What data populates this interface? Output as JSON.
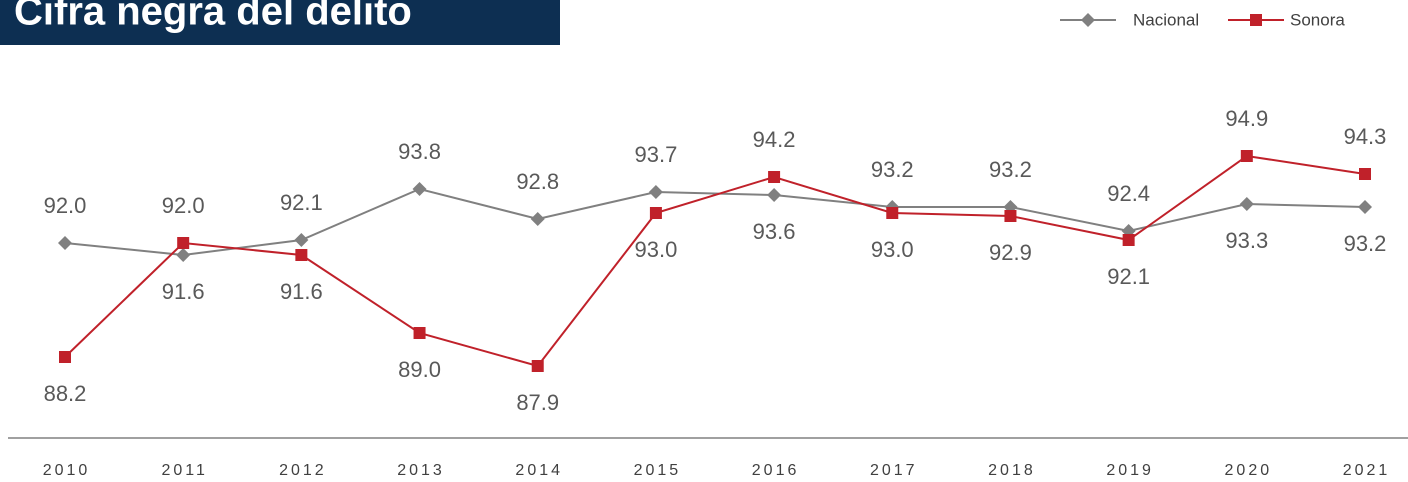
{
  "chart_data": {
    "type": "line",
    "title": "Cifra negra del delito",
    "categories": [
      "2010",
      "2011",
      "2012",
      "2013",
      "2014",
      "2015",
      "2016",
      "2017",
      "2018",
      "2019",
      "2020",
      "2021"
    ],
    "series": [
      {
        "name": "Nacional",
        "color": "#808080",
        "values": [
          92.0,
          91.6,
          92.1,
          93.8,
          92.8,
          93.7,
          93.6,
          93.2,
          93.2,
          92.4,
          93.3,
          93.2
        ],
        "value_labels": [
          "92.0",
          "91.6",
          "92.1",
          "93.8",
          "92.8",
          "93.7",
          "93.6",
          "93.2",
          "93.2",
          "92.4",
          "93.3",
          "93.2"
        ]
      },
      {
        "name": "Sonora",
        "color": "#c0212a",
        "values": [
          88.2,
          92.0,
          91.6,
          89.0,
          87.9,
          93.0,
          94.2,
          93.0,
          92.9,
          92.1,
          94.9,
          94.3
        ],
        "value_labels": [
          "88.2",
          "92.0",
          "91.6",
          "89.0",
          "87.9",
          "93.0",
          "94.2",
          "93.0",
          "92.9",
          "92.1",
          "94.9",
          "94.3"
        ]
      }
    ],
    "ylim": [
      85.5,
      96.5
    ]
  }
}
